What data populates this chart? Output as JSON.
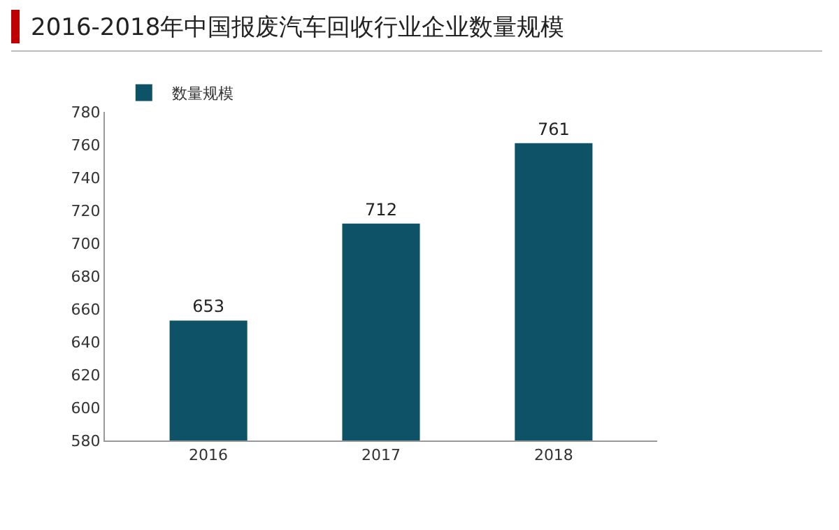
{
  "chart_data": {
    "type": "bar",
    "title": "2016-2018年中国报废汽车回收行业企业数量规模",
    "categories": [
      "2016",
      "2017",
      "2018"
    ],
    "series": [
      {
        "name": "数量规模",
        "color": "#0e5267",
        "values": [
          653,
          712,
          761
        ]
      }
    ],
    "ylim": [
      580,
      780
    ],
    "yticks": [
      580,
      600,
      620,
      640,
      660,
      680,
      700,
      720,
      740,
      760,
      780
    ],
    "data_labels": true,
    "grid": false,
    "legend": "top left"
  }
}
